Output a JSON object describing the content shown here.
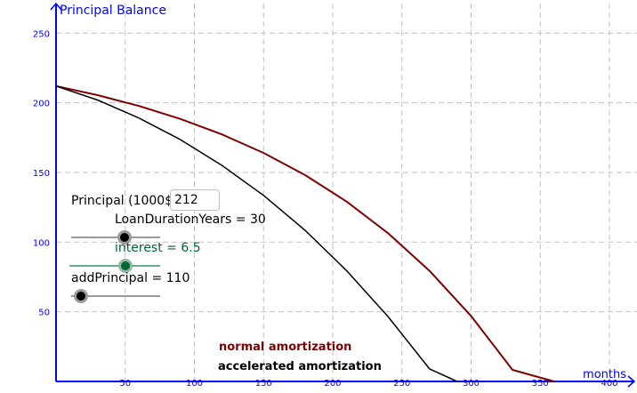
{
  "chart_data": {
    "type": "line",
    "xlabel": "months",
    "ylabel": "Principal Balance",
    "xlim": [
      0,
      420
    ],
    "ylim": [
      0,
      265
    ],
    "x_ticks": [
      "50",
      "100",
      "150",
      "200",
      "250",
      "300",
      "350",
      "400"
    ],
    "y_ticks": [
      "50",
      "100",
      "150",
      "200",
      "250"
    ],
    "grid": true,
    "series": [
      {
        "name": "normal amortization",
        "color": "#7f0000",
        "x": [
          0,
          30,
          60,
          90,
          120,
          150,
          180,
          210,
          240,
          270,
          300,
          330,
          360
        ],
        "y": [
          212,
          205.5,
          197.7,
          188.4,
          177.3,
          164.0,
          148.1,
          129.1,
          106.4,
          79.4,
          47.0,
          8.3,
          0
        ]
      },
      {
        "name": "accelerated amortization",
        "color": "#000000",
        "x": [
          0,
          30,
          60,
          90,
          120,
          150,
          180,
          210,
          240,
          270,
          290
        ],
        "y": [
          212,
          202.0,
          189.0,
          173.5,
          155.0,
          133.5,
          108.5,
          79.5,
          46.5,
          9.0,
          0
        ]
      }
    ]
  },
  "controls": {
    "principal_label": "Principal (1000$):",
    "principal_value": "212",
    "duration_label": "LoanDurationYears = 30",
    "duration_value": 30,
    "interest_label": "interest = 6.5",
    "interest_value": 6.5,
    "add_principal_label": "addPrincipal = 110",
    "add_principal_value": 110
  },
  "colors": {
    "axis": "#0000ff",
    "grid": "#c0c0c0",
    "normal": "#7f0000",
    "accelerated": "#000000",
    "interest": "#006633"
  }
}
